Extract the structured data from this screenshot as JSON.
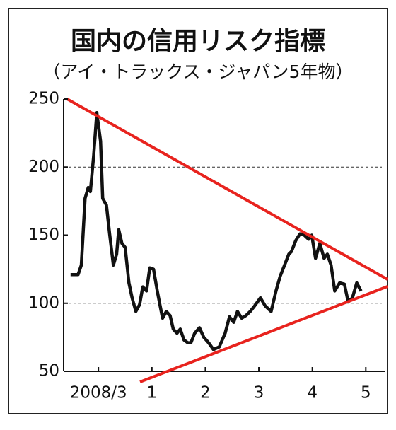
{
  "chart_data": {
    "type": "line",
    "title": "国内の信用リスク指標",
    "subtitle": "（アイ・トラックス・ジャパン5年物）",
    "x": [
      -0.52,
      -0.38,
      -0.32,
      -0.25,
      -0.19,
      -0.15,
      -0.09,
      -0.03,
      0.04,
      0.08,
      0.15,
      0.21,
      0.28,
      0.34,
      0.38,
      0.44,
      0.5,
      0.57,
      0.63,
      0.7,
      0.77,
      0.83,
      0.9,
      0.96,
      1.03,
      1.1,
      1.15,
      1.2,
      1.27,
      1.34,
      1.4,
      1.47,
      1.53,
      1.6,
      1.67,
      1.73,
      1.8,
      1.89,
      1.97,
      2.06,
      2.15,
      2.26,
      2.37,
      2.45,
      2.53,
      2.6,
      2.68,
      2.76,
      2.84,
      2.92,
      3.03,
      3.12,
      3.23,
      3.32,
      3.4,
      3.48,
      3.56,
      3.61,
      3.69,
      3.77,
      3.85,
      3.93,
      3.99,
      4.06,
      4.14,
      4.22,
      4.28,
      4.35,
      4.42,
      4.51,
      4.6,
      4.67,
      4.75,
      4.83,
      4.91
    ],
    "series": [
      {
        "color": "#111111",
        "values": [
          121,
          121,
          128,
          177,
          185,
          182,
          208,
          240,
          219,
          177,
          172,
          151,
          128,
          136,
          154,
          144,
          141,
          115,
          104,
          94,
          99,
          112,
          109,
          126,
          125,
          109,
          99,
          89,
          94,
          91,
          81,
          78,
          81,
          73,
          71,
          71,
          78,
          82,
          75,
          71,
          66,
          68,
          78,
          90,
          86,
          94,
          89,
          91,
          94,
          98,
          104,
          98,
          94,
          109,
          120,
          128,
          136,
          138,
          146,
          151,
          150,
          147,
          150,
          133,
          144,
          133,
          136,
          128,
          109,
          115,
          114,
          101,
          104,
          115,
          109
        ]
      }
    ],
    "xlim": [
      -0.65,
      5.3
    ],
    "xticks": [
      {
        "value": 0,
        "label": "2008/3"
      },
      1,
      2,
      3,
      4,
      5
    ],
    "ylim": [
      50,
      250
    ],
    "yticks": [
      50,
      100,
      150,
      200,
      250
    ],
    "grid_at": [
      100,
      200
    ]
  }
}
